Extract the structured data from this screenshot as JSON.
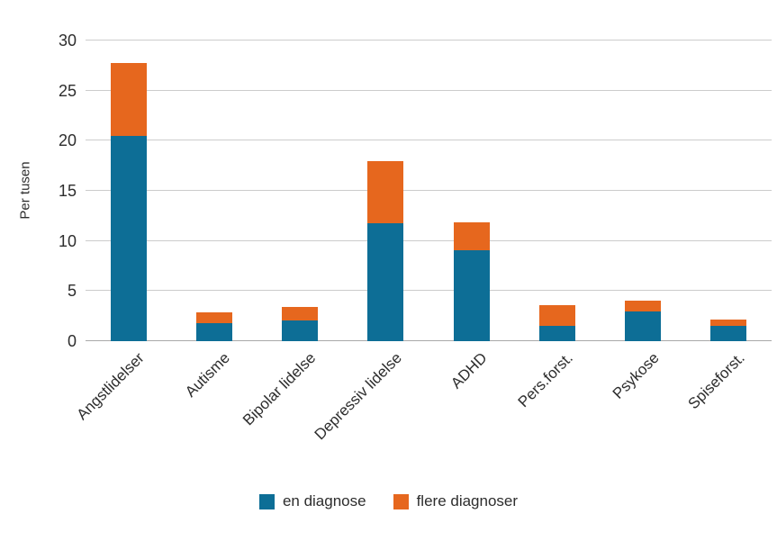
{
  "chart_data": {
    "type": "bar",
    "stacked": true,
    "title": "",
    "ylabel": "Per tusen",
    "xlabel": "",
    "categories": [
      "Angstlidelser",
      "Autisme",
      "Bipolar lidelse",
      "Depressiv lidelse",
      "ADHD",
      "Pers.forst.",
      "Psykose",
      "Spiseforst."
    ],
    "series": [
      {
        "name": "en diagnose",
        "color": "#0d6e96",
        "values": [
          20.5,
          1.8,
          2.1,
          11.8,
          9.1,
          1.5,
          3.0,
          1.5
        ]
      },
      {
        "name": "flere diagnoser",
        "color": "#e6671e",
        "values": [
          7.3,
          1.1,
          1.3,
          6.2,
          2.8,
          2.1,
          1.0,
          0.7
        ]
      }
    ],
    "yticks": [
      0,
      5,
      10,
      15,
      20,
      25,
      30
    ],
    "ylim": [
      0,
      30
    ],
    "grid": true,
    "gridline_color": "#cccccc",
    "baseline_color": "#a9a9a9",
    "legend_position": "bottom"
  }
}
